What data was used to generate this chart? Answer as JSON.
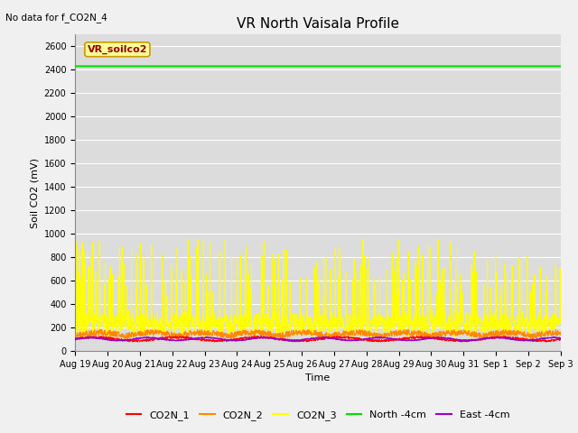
{
  "title": "VR North Vaisala Profile",
  "top_left_note": "No data for f_CO2N_4",
  "xlabel": "Time",
  "ylabel": "Soil CO2 (mV)",
  "ylim": [
    0,
    2700
  ],
  "yticks": [
    0,
    200,
    400,
    600,
    800,
    1000,
    1200,
    1400,
    1600,
    1800,
    2000,
    2200,
    2400,
    2600
  ],
  "background_color": "#dcdcdc",
  "fig_facecolor": "#f0f0f0",
  "north_4cm_value": 2430,
  "east_4cm_value": 100,
  "legend_box_text": "VR_soilco2",
  "legend_box_bg": "#ffff99",
  "legend_box_edge": "#cc9900",
  "legend_box_text_color": "#990000",
  "colors": {
    "CO2N_1": "#ff0000",
    "CO2N_2": "#ff8800",
    "CO2N_3": "#ffff00",
    "North_4cm": "#00dd00",
    "East_4cm": "#9900cc"
  },
  "x_tick_labels": [
    "Aug 19",
    "Aug 20",
    "Aug 21",
    "Aug 22",
    "Aug 23",
    "Aug 24",
    "Aug 25",
    "Aug 26",
    "Aug 27",
    "Aug 28",
    "Aug 29",
    "Aug 30",
    "Aug 31",
    "Sep 1",
    "Sep 2",
    "Sep 3"
  ],
  "n_points": 1500,
  "title_fontsize": 11,
  "axis_label_fontsize": 8,
  "tick_fontsize": 7,
  "legend_fontsize": 8
}
